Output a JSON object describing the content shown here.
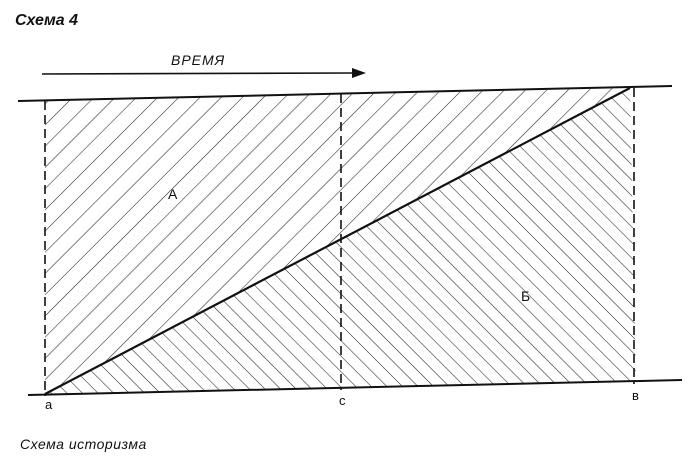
{
  "title": "Схема 4",
  "arrow_label": "ВРЕМЯ",
  "regions": {
    "upper": "А",
    "lower": "Б"
  },
  "points": {
    "left": "а",
    "middle": "с",
    "right": "в"
  },
  "caption": "Схема историзма"
}
